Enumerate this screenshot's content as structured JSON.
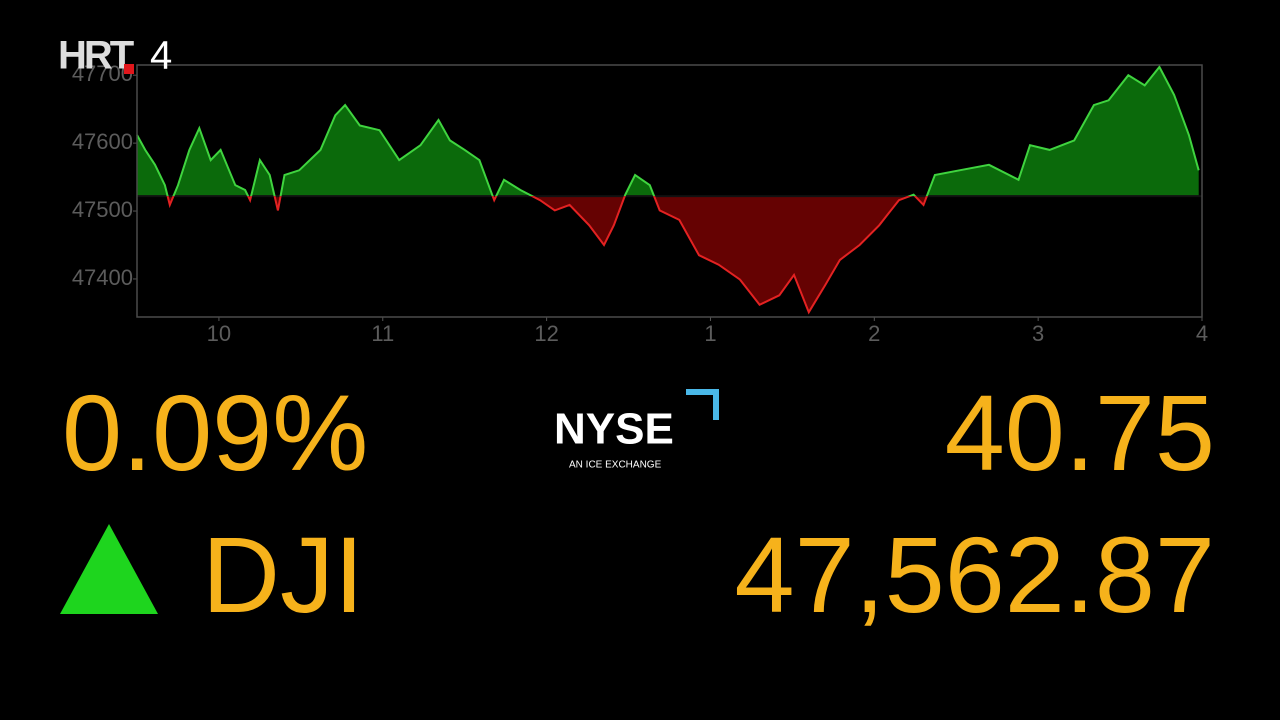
{
  "chart_data": {
    "type": "area",
    "x": [
      9.5,
      9.55,
      9.61,
      9.67,
      9.7,
      9.75,
      9.82,
      9.88,
      9.95,
      10.01,
      10.1,
      10.16,
      10.19,
      10.25,
      10.31,
      10.36,
      10.4,
      10.49,
      10.62,
      10.71,
      10.77,
      10.86,
      10.98,
      11.1,
      11.23,
      11.34,
      11.41,
      11.5,
      11.59,
      11.68,
      11.74,
      11.84,
      11.96,
      12.05,
      12.14,
      12.26,
      12.35,
      12.41,
      12.48,
      12.54,
      12.63,
      12.69,
      12.81,
      12.93,
      13.05,
      13.18,
      13.3,
      13.42,
      13.51,
      13.6,
      13.7,
      13.79,
      13.91,
      14.03,
      14.15,
      14.24,
      14.3,
      14.37,
      14.52,
      14.7,
      14.88,
      14.95,
      15.07,
      15.22,
      15.34,
      15.43,
      15.55,
      15.65,
      15.74,
      15.83,
      15.92,
      15.98
    ],
    "values": [
      47612,
      47590,
      47568,
      47538,
      47509,
      47538,
      47590,
      47622,
      47575,
      47590,
      47538,
      47531,
      47516,
      47575,
      47553,
      47501,
      47553,
      47560,
      47590,
      47641,
      47656,
      47626,
      47619,
      47575,
      47597,
      47634,
      47604,
      47590,
      47575,
      47516,
      47546,
      47531,
      47516,
      47501,
      47509,
      47479,
      47450,
      47479,
      47524,
      47553,
      47538,
      47501,
      47487,
      47435,
      47421,
      47399,
      47362,
      47376,
      47406,
      47351,
      47391,
      47428,
      47450,
      47479,
      47516,
      47524,
      47509,
      47553,
      47560,
      47568,
      47546,
      47597,
      47590,
      47604,
      47656,
      47663,
      47700,
      47685,
      47712,
      47671,
      47612,
      47560
    ],
    "baseline": 47522,
    "up_color": "#3fd43f",
    "up_fill": "#0b6a0b",
    "down_color": "#e32222",
    "down_fill": "#650202",
    "xlim": [
      9.5,
      16
    ],
    "xticks": [
      10,
      11,
      12,
      {
        "value": 13,
        "label": "1"
      },
      {
        "value": 14,
        "label": "2"
      },
      {
        "value": 15,
        "label": "3"
      },
      {
        "value": 16,
        "label": "4"
      }
    ],
    "ylim": [
      47344,
      47715
    ],
    "yticks": [
      47400,
      47500,
      47600,
      47700
    ]
  },
  "quote": {
    "change_pct": "0.09%",
    "change": "40.75",
    "symbol": "DJI",
    "price": "47,562.87"
  },
  "exchange": {
    "name": "NYSE",
    "tagline": "AN ICE EXCHANGE"
  },
  "channel": {
    "brand": "HRT",
    "number": "4"
  }
}
